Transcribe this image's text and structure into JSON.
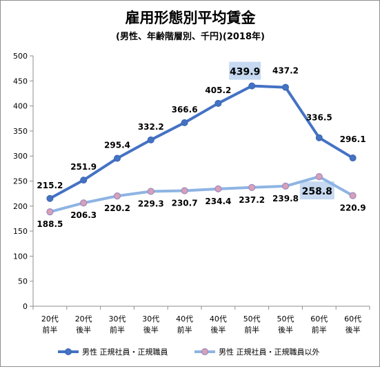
{
  "chart_data": {
    "type": "line",
    "title": "雇用形態別平均賃金",
    "subtitle": "(男性、年齢階層別、千円)(2018年)",
    "categories": [
      [
        "20代",
        "前半"
      ],
      [
        "20代",
        "後半"
      ],
      [
        "30代",
        "前半"
      ],
      [
        "30代",
        "後半"
      ],
      [
        "40代",
        "前半"
      ],
      [
        "40代",
        "後半"
      ],
      [
        "50代",
        "前半"
      ],
      [
        "50代",
        "後半"
      ],
      [
        "60代",
        "前半"
      ],
      [
        "60代",
        "後半"
      ]
    ],
    "ylim": [
      0,
      500
    ],
    "yticks": [
      0,
      50,
      100,
      150,
      200,
      250,
      300,
      350,
      400,
      450,
      500
    ],
    "grid": false,
    "legend_position": "bottom",
    "series": [
      {
        "name": "男性 正規社員・正規職員",
        "color": "#4472c4",
        "values": [
          215.2,
          251.9,
          295.4,
          332.2,
          366.6,
          405.2,
          439.9,
          437.2,
          336.5,
          296.1
        ],
        "labels": [
          "215.2",
          "251.9",
          "295.4",
          "332.2",
          "366.6",
          "405.2",
          "439.9",
          "437.2",
          "336.5",
          "296.1"
        ],
        "highlight_index": 6
      },
      {
        "name": "男性 正規社員・正規職員以外",
        "color": "#8eb4e3",
        "values": [
          188.5,
          206.3,
          220.2,
          229.3,
          230.7,
          234.4,
          237.2,
          239.8,
          258.8,
          220.9
        ],
        "labels": [
          "188.5",
          "206.3",
          "220.2",
          "229.3",
          "230.7",
          "234.4",
          "237.2",
          "239.8",
          "258.8",
          "220.9"
        ],
        "highlight_index": 8
      }
    ]
  }
}
